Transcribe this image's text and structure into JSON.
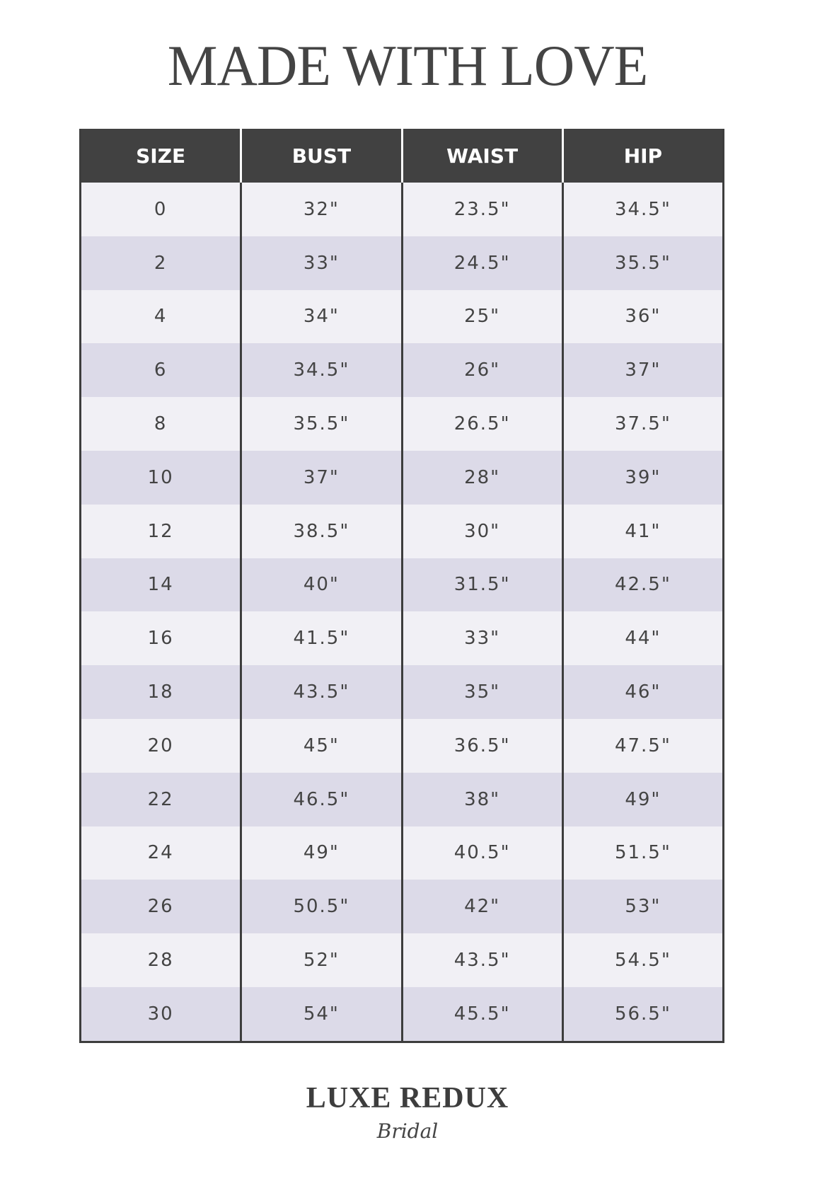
{
  "title": "MADE WITH LOVE",
  "table": {
    "headers": [
      "SIZE",
      "BUST",
      "WAIST",
      "HIP"
    ],
    "rows": [
      [
        "0",
        "32\"",
        "23.5\"",
        "34.5\""
      ],
      [
        "2",
        "33\"",
        "24.5\"",
        "35.5\""
      ],
      [
        "4",
        "34\"",
        "25\"",
        "36\""
      ],
      [
        "6",
        "34.5\"",
        "26\"",
        "37\""
      ],
      [
        "8",
        "35.5\"",
        "26.5\"",
        "37.5\""
      ],
      [
        "10",
        "37\"",
        "28\"",
        "39\""
      ],
      [
        "12",
        "38.5\"",
        "30\"",
        "41\""
      ],
      [
        "14",
        "40\"",
        "31.5\"",
        "42.5\""
      ],
      [
        "16",
        "41.5\"",
        "33\"",
        "44\""
      ],
      [
        "18",
        "43.5\"",
        "35\"",
        "46\""
      ],
      [
        "20",
        "45\"",
        "36.5\"",
        "47.5\""
      ],
      [
        "22",
        "46.5\"",
        "38\"",
        "49\""
      ],
      [
        "24",
        "49\"",
        "40.5\"",
        "51.5\""
      ],
      [
        "26",
        "50.5\"",
        "42\"",
        "53\""
      ],
      [
        "28",
        "52\"",
        "43.5\"",
        "54.5\""
      ],
      [
        "30",
        "54\"",
        "45.5\"",
        "56.5\""
      ]
    ]
  },
  "logo": {
    "main": "LUXE REDUX",
    "sub": "Bridal"
  },
  "colors": {
    "header_bg": "#414141",
    "row_light": "#f1f0f5",
    "row_dark": "#dcdae8",
    "text": "#444444"
  }
}
